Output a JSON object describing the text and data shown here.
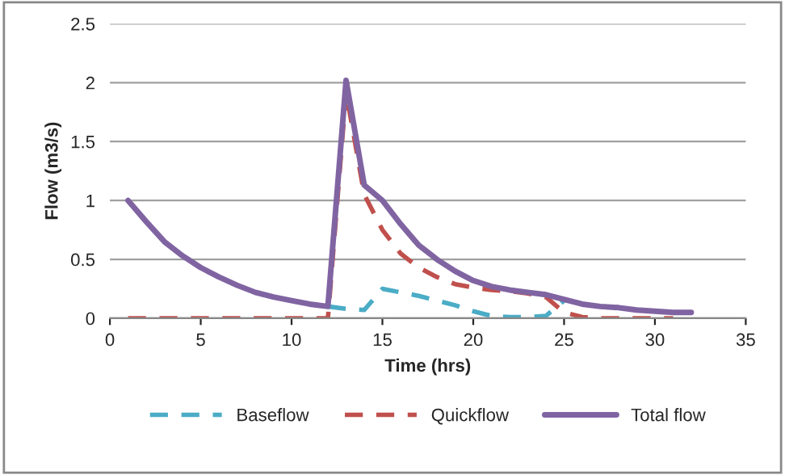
{
  "chart_data": {
    "type": "line",
    "xlabel": "Time (hrs)",
    "ylabel": "Flow (m3/s)",
    "x": [
      1,
      2,
      3,
      4,
      5,
      6,
      7,
      8,
      9,
      10,
      11,
      12,
      13,
      14,
      15,
      16,
      17,
      18,
      19,
      20,
      21,
      22,
      23,
      24,
      25,
      26,
      27,
      28,
      29,
      30,
      31,
      32
    ],
    "series": [
      {
        "name": "Baseflow",
        "color": "#4bacc6",
        "line_style": "dashed",
        "values": [
          null,
          null,
          null,
          null,
          null,
          null,
          null,
          null,
          null,
          null,
          null,
          0.1,
          0.08,
          0.07,
          0.25,
          0.22,
          0.19,
          0.15,
          0.11,
          0.06,
          0.02,
          0.01,
          0.01,
          0.02,
          0.15,
          null,
          null,
          null,
          null,
          null,
          null,
          null
        ]
      },
      {
        "name": "Quickflow",
        "color": "#c0504d",
        "line_style": "dashed",
        "values": [
          0,
          0,
          0,
          0,
          0,
          0,
          0,
          0,
          0,
          0,
          0,
          0,
          1.92,
          1.05,
          0.75,
          0.55,
          0.43,
          0.35,
          0.29,
          0.26,
          0.24,
          0.23,
          0.21,
          0.18,
          0.05,
          0.01,
          0,
          0,
          0,
          0,
          0,
          null
        ]
      },
      {
        "name": "Total flow",
        "color": "#8064a2",
        "line_style": "solid",
        "values": [
          1.0,
          0.82,
          0.65,
          0.53,
          0.43,
          0.35,
          0.28,
          0.22,
          0.18,
          0.15,
          0.12,
          0.1,
          2.02,
          1.13,
          1.0,
          0.8,
          0.62,
          0.5,
          0.4,
          0.32,
          0.27,
          0.24,
          0.22,
          0.2,
          0.16,
          0.12,
          0.1,
          0.09,
          0.07,
          0.06,
          0.05,
          0.05
        ]
      }
    ],
    "xlim": [
      0,
      35
    ],
    "xticks": [
      0,
      5,
      10,
      15,
      20,
      25,
      30,
      35
    ],
    "ylim": [
      0,
      2.5
    ],
    "yticks": [
      0,
      0.5,
      1,
      1.5,
      2,
      2.5
    ],
    "grid": "y",
    "legend": "bottom",
    "marker": "none"
  }
}
